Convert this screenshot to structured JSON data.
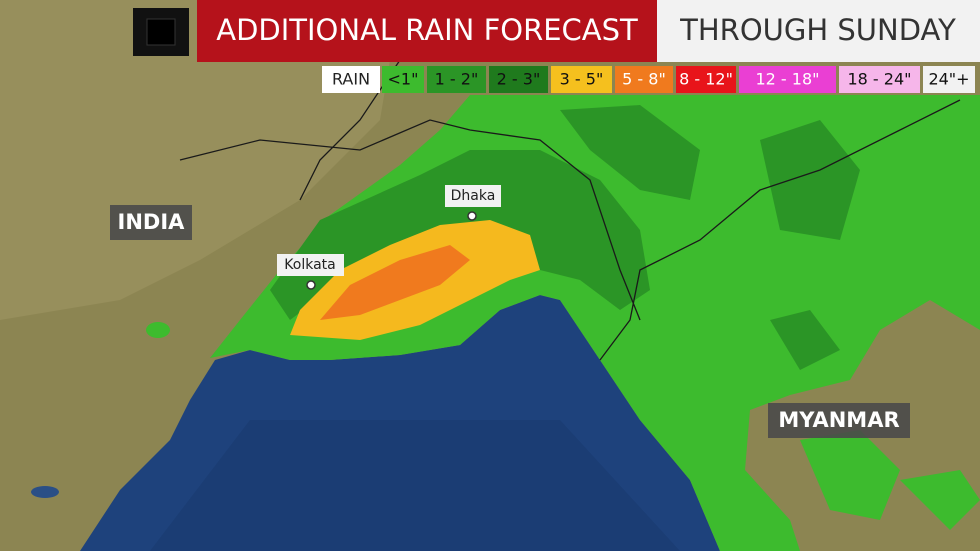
{
  "header": {
    "title": "ADDITIONAL RAIN FORECAST",
    "subtitle": "THROUGH SUNDAY"
  },
  "legend": {
    "title": "RAIN",
    "items": [
      "<1\"",
      "1 - 2\"",
      "2 - 3\"",
      "3 - 5\"",
      "5 - 8\"",
      "8 - 12\"",
      "12 - 18\"",
      "18 - 24\"",
      "24\"+"
    ]
  },
  "places": {
    "india": "INDIA",
    "myanmar": "MYANMAR",
    "kolkata": "Kolkata",
    "dhaka": "Dhaka"
  }
}
